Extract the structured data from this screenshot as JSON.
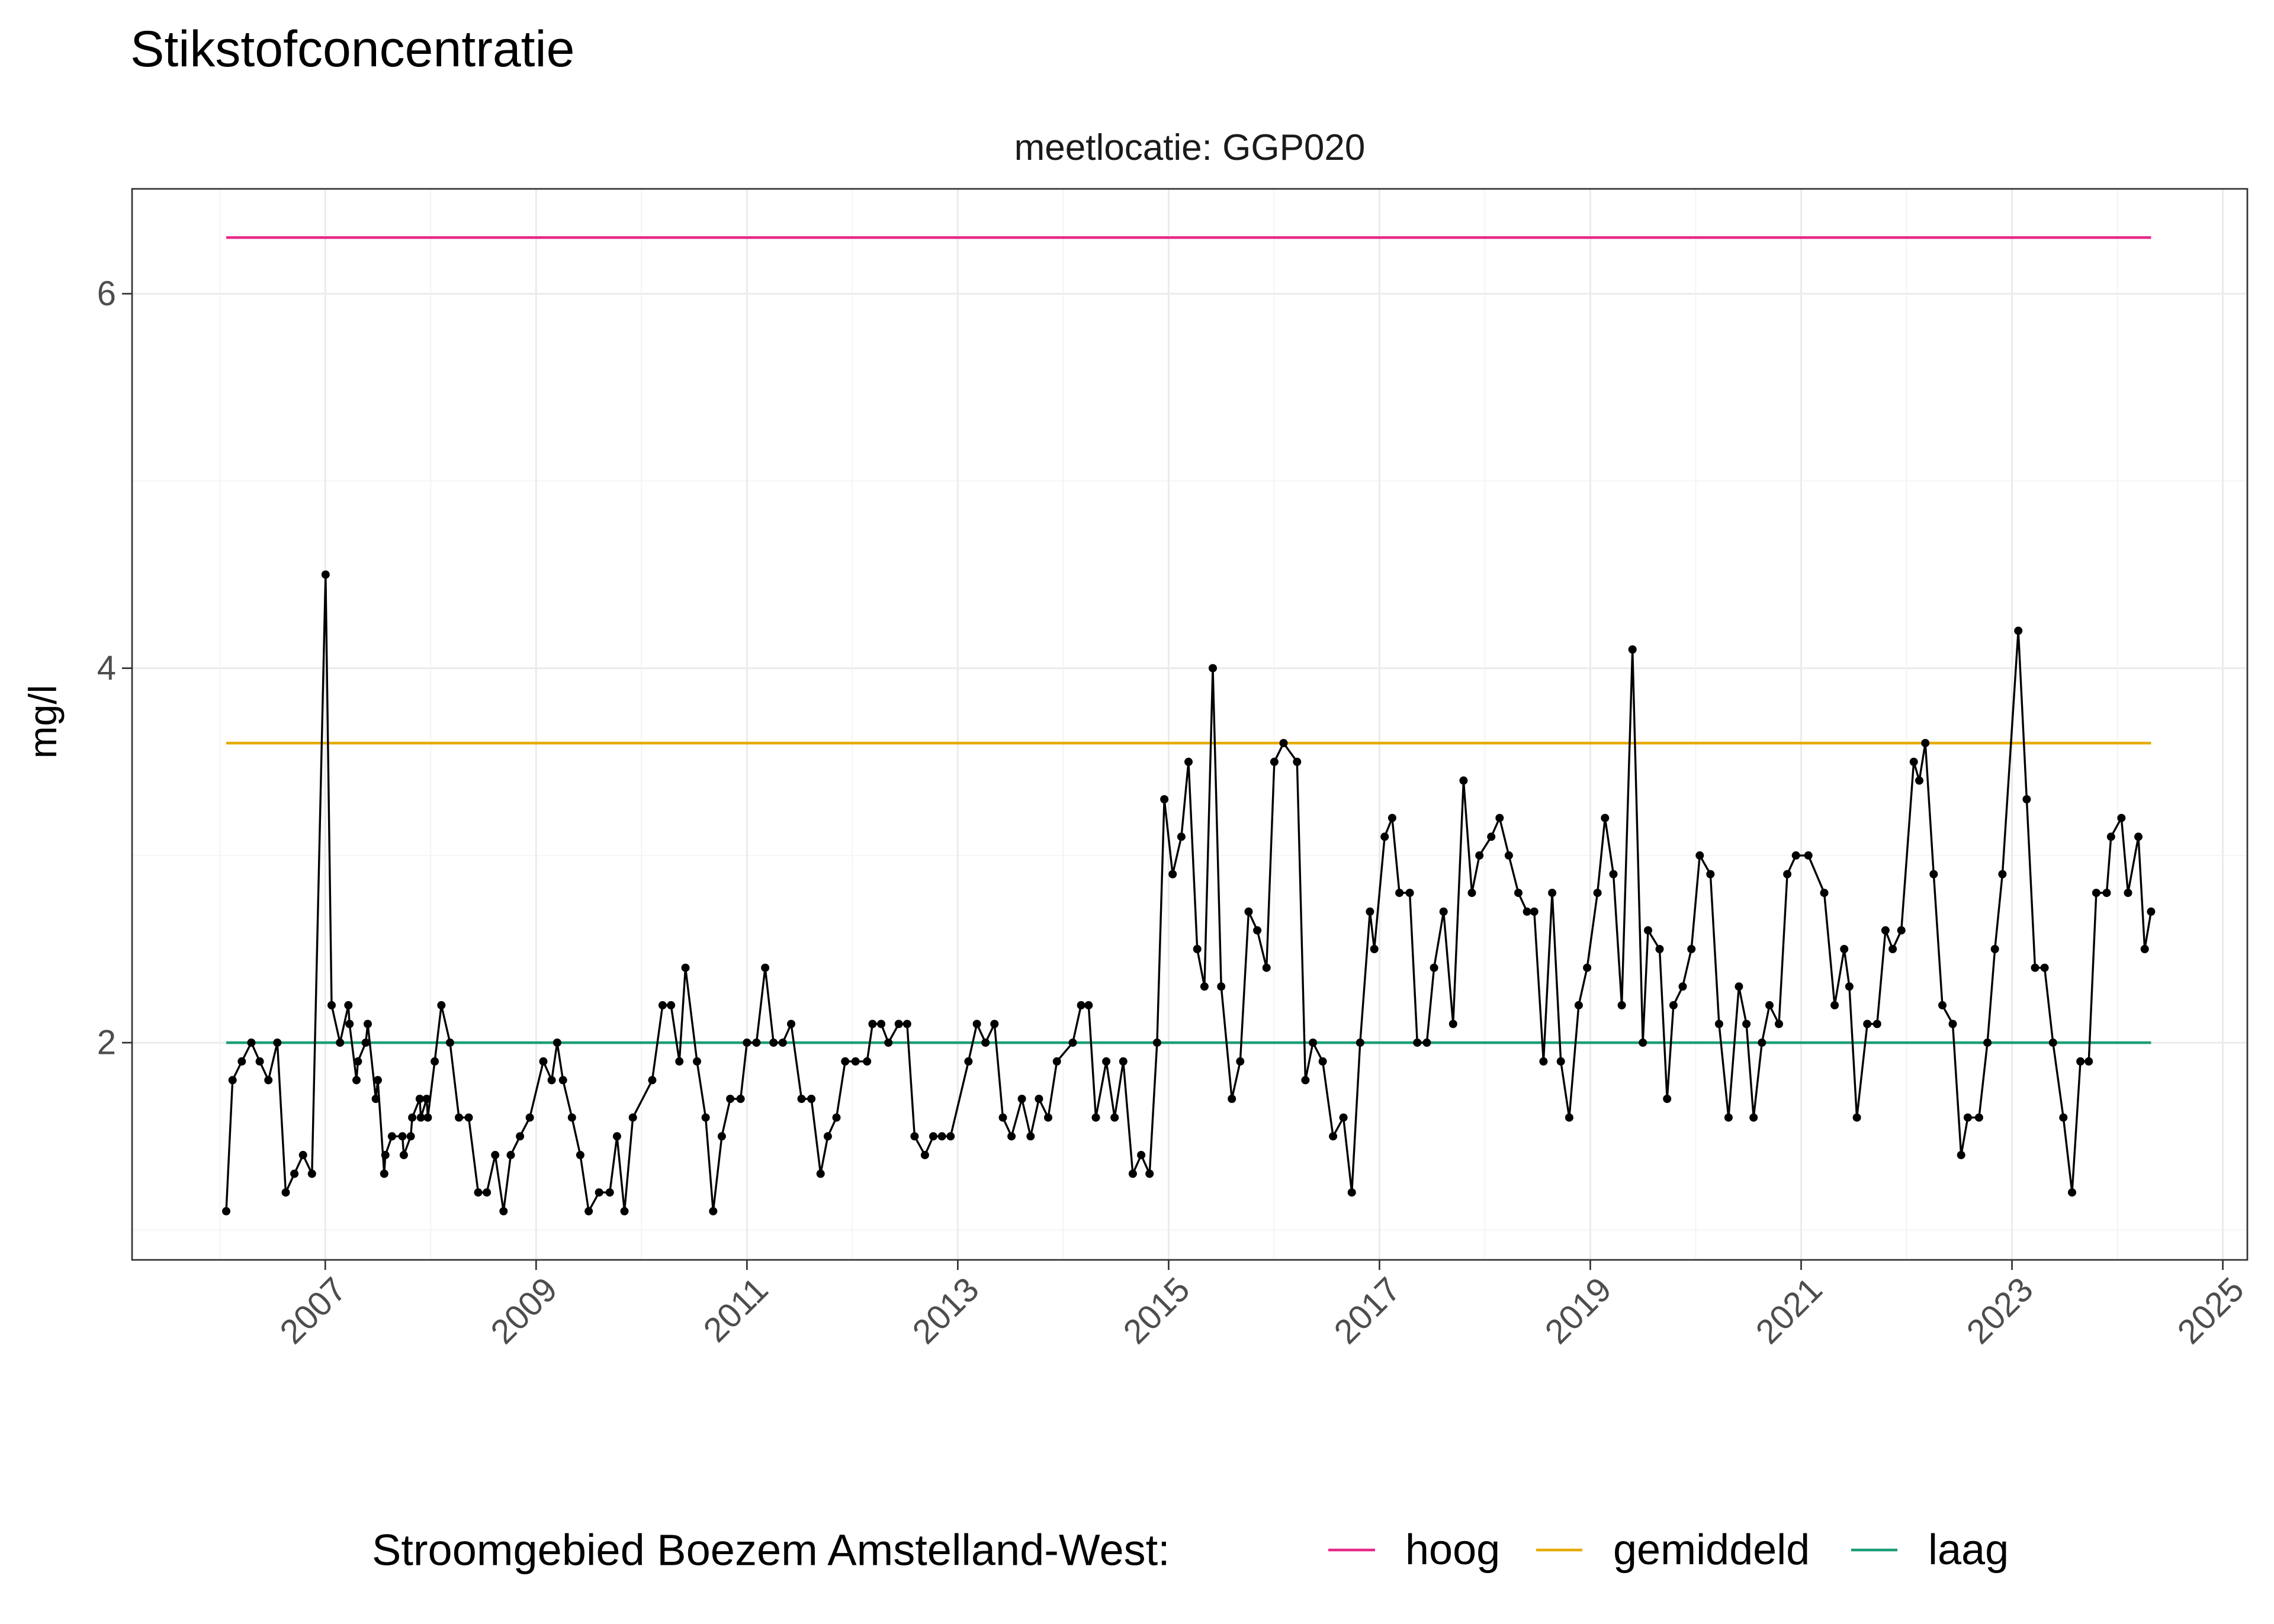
{
  "chart_data": {
    "type": "line",
    "title": "Stikstofconcentratie",
    "facet_label": "meetlocatie: GGP020",
    "ylabel": "mg/l",
    "xlim": [
      "2005-03-03",
      "2025-03-27"
    ],
    "ylim": [
      0.84,
      6.56
    ],
    "x_ticks": [
      "2007",
      "2009",
      "2011",
      "2013",
      "2015",
      "2017",
      "2019",
      "2021",
      "2023",
      "2025"
    ],
    "y_ticks": [
      "2",
      "4",
      "6"
    ],
    "grid": true,
    "legend": {
      "title": "Stroomgebied Boezem Amstelland-West:",
      "position": "bottom"
    },
    "reference_lines": [
      {
        "name": "hoog",
        "value": 6.3,
        "color": "#E7298A"
      },
      {
        "name": "gemiddeld",
        "value": 3.6,
        "color": "#E6AB02"
      },
      {
        "name": "laag",
        "value": 2.0,
        "color": "#1B9E77"
      }
    ],
    "series": [
      {
        "color": "#000000",
        "markers": true,
        "points": [
          [
            "2006-01-23",
            1.1
          ],
          [
            "2006-02-14",
            1.8
          ],
          [
            "2006-03-18",
            1.9
          ],
          [
            "2006-04-20",
            2.0
          ],
          [
            "2006-05-19",
            1.9
          ],
          [
            "2006-06-18",
            1.8
          ],
          [
            "2006-07-19",
            2.0
          ],
          [
            "2006-08-17",
            1.2
          ],
          [
            "2006-09-16",
            1.3
          ],
          [
            "2006-10-16",
            1.4
          ],
          [
            "2006-11-16",
            1.3
          ],
          [
            "2007-01-02",
            4.5
          ],
          [
            "2007-01-23",
            2.2
          ],
          [
            "2007-02-21",
            2.0
          ],
          [
            "2007-03-22",
            2.2
          ],
          [
            "2007-03-26",
            2.1
          ],
          [
            "2007-04-19",
            1.8
          ],
          [
            "2007-04-24",
            1.9
          ],
          [
            "2007-05-21",
            2.0
          ],
          [
            "2007-05-28",
            2.1
          ],
          [
            "2007-06-25",
            1.7
          ],
          [
            "2007-07-02",
            1.8
          ],
          [
            "2007-07-24",
            1.3
          ],
          [
            "2007-07-28",
            1.4
          ],
          [
            "2007-08-20",
            1.5
          ],
          [
            "2007-09-25",
            1.5
          ],
          [
            "2007-09-30",
            1.4
          ],
          [
            "2007-10-24",
            1.5
          ],
          [
            "2007-10-29",
            1.6
          ],
          [
            "2007-11-24",
            1.7
          ],
          [
            "2007-11-28",
            1.6
          ],
          [
            "2007-12-18",
            1.7
          ],
          [
            "2007-12-22",
            1.6
          ],
          [
            "2008-01-15",
            1.9
          ],
          [
            "2008-02-07",
            2.2
          ],
          [
            "2008-03-08",
            2.0
          ],
          [
            "2008-04-08",
            1.6
          ],
          [
            "2008-05-12",
            1.6
          ],
          [
            "2008-06-14",
            1.2
          ],
          [
            "2008-07-14",
            1.2
          ],
          [
            "2008-08-12",
            1.4
          ],
          [
            "2008-09-10",
            1.1
          ],
          [
            "2008-10-05",
            1.4
          ],
          [
            "2008-11-06",
            1.5
          ],
          [
            "2008-12-10",
            1.6
          ],
          [
            "2009-01-26",
            1.9
          ],
          [
            "2009-02-24",
            1.8
          ],
          [
            "2009-03-15",
            2.0
          ],
          [
            "2009-04-04",
            1.8
          ],
          [
            "2009-05-05",
            1.6
          ],
          [
            "2009-06-03",
            1.4
          ],
          [
            "2009-07-02",
            1.1
          ],
          [
            "2009-08-07",
            1.2
          ],
          [
            "2009-09-13",
            1.2
          ],
          [
            "2009-10-08",
            1.5
          ],
          [
            "2009-11-03",
            1.1
          ],
          [
            "2009-12-02",
            1.6
          ],
          [
            "2010-02-07",
            1.8
          ],
          [
            "2010-03-15",
            2.2
          ],
          [
            "2010-04-13",
            2.2
          ],
          [
            "2010-05-12",
            1.9
          ],
          [
            "2010-06-02",
            2.4
          ],
          [
            "2010-07-12",
            1.9
          ],
          [
            "2010-08-11",
            1.6
          ],
          [
            "2010-09-06",
            1.1
          ],
          [
            "2010-10-06",
            1.5
          ],
          [
            "2010-11-04",
            1.7
          ],
          [
            "2010-12-10",
            1.7
          ],
          [
            "2011-01-01",
            2.0
          ],
          [
            "2011-02-03",
            2.0
          ],
          [
            "2011-03-05",
            2.4
          ],
          [
            "2011-04-03",
            2.0
          ],
          [
            "2011-05-05",
            2.0
          ],
          [
            "2011-06-03",
            2.1
          ],
          [
            "2011-07-09",
            1.7
          ],
          [
            "2011-08-12",
            1.7
          ],
          [
            "2011-09-13",
            1.3
          ],
          [
            "2011-10-08",
            1.5
          ],
          [
            "2011-11-07",
            1.6
          ],
          [
            "2011-12-07",
            1.9
          ],
          [
            "2012-01-12",
            1.9
          ],
          [
            "2012-02-21",
            1.9
          ],
          [
            "2012-03-11",
            2.1
          ],
          [
            "2012-04-10",
            2.1
          ],
          [
            "2012-05-05",
            2.0
          ],
          [
            "2012-06-10",
            2.1
          ],
          [
            "2012-07-09",
            2.1
          ],
          [
            "2012-08-04",
            1.5
          ],
          [
            "2012-09-09",
            1.4
          ],
          [
            "2012-10-08",
            1.5
          ],
          [
            "2012-11-07",
            1.5
          ],
          [
            "2012-12-07",
            1.5
          ],
          [
            "2013-02-07",
            1.9
          ],
          [
            "2013-03-08",
            2.1
          ],
          [
            "2013-04-07",
            2.0
          ],
          [
            "2013-05-08",
            2.1
          ],
          [
            "2013-06-06",
            1.6
          ],
          [
            "2013-07-06",
            1.5
          ],
          [
            "2013-08-11",
            1.7
          ],
          [
            "2013-09-10",
            1.5
          ],
          [
            "2013-10-09",
            1.7
          ],
          [
            "2013-11-10",
            1.6
          ],
          [
            "2013-12-10",
            1.9
          ],
          [
            "2014-02-03",
            2.0
          ],
          [
            "2014-03-04",
            2.2
          ],
          [
            "2014-03-30",
            2.2
          ],
          [
            "2014-04-24",
            1.6
          ],
          [
            "2014-05-30",
            1.9
          ],
          [
            "2014-06-28",
            1.6
          ],
          [
            "2014-07-28",
            1.9
          ],
          [
            "2014-08-30",
            1.3
          ],
          [
            "2014-09-28",
            1.4
          ],
          [
            "2014-10-27",
            1.3
          ],
          [
            "2014-11-22",
            2.0
          ],
          [
            "2014-12-17",
            3.3
          ],
          [
            "2015-01-15",
            2.9
          ],
          [
            "2015-02-14",
            3.1
          ],
          [
            "2015-03-11",
            3.5
          ],
          [
            "2015-04-10",
            2.5
          ],
          [
            "2015-05-05",
            2.3
          ],
          [
            "2015-06-03",
            4.0
          ],
          [
            "2015-07-02",
            2.3
          ],
          [
            "2015-08-08",
            1.7
          ],
          [
            "2015-09-06",
            1.9
          ],
          [
            "2015-10-05",
            2.7
          ],
          [
            "2015-11-04",
            2.6
          ],
          [
            "2015-12-06",
            2.4
          ],
          [
            "2016-01-02",
            3.5
          ],
          [
            "2016-02-03",
            3.6
          ],
          [
            "2016-03-21",
            3.5
          ],
          [
            "2016-04-19",
            1.8
          ],
          [
            "2016-05-15",
            2.0
          ],
          [
            "2016-06-18",
            1.9
          ],
          [
            "2016-07-24",
            1.5
          ],
          [
            "2016-08-29",
            1.6
          ],
          [
            "2016-09-27",
            1.2
          ],
          [
            "2016-10-26",
            2.0
          ],
          [
            "2016-11-29",
            2.7
          ],
          [
            "2016-12-14",
            2.5
          ],
          [
            "2017-01-19",
            3.1
          ],
          [
            "2017-02-14",
            3.2
          ],
          [
            "2017-03-11",
            2.8
          ],
          [
            "2017-04-16",
            2.8
          ],
          [
            "2017-05-12",
            2.0
          ],
          [
            "2017-06-14",
            2.0
          ],
          [
            "2017-07-09",
            2.4
          ],
          [
            "2017-08-11",
            2.7
          ],
          [
            "2017-09-13",
            2.1
          ],
          [
            "2017-10-19",
            3.4
          ],
          [
            "2017-11-17",
            2.8
          ],
          [
            "2017-12-13",
            3.0
          ],
          [
            "2018-01-23",
            3.1
          ],
          [
            "2018-02-21",
            3.2
          ],
          [
            "2018-03-25",
            3.0
          ],
          [
            "2018-04-27",
            2.8
          ],
          [
            "2018-05-27",
            2.7
          ],
          [
            "2018-06-21",
            2.7
          ],
          [
            "2018-07-23",
            1.9
          ],
          [
            "2018-08-22",
            2.8
          ],
          [
            "2018-09-21",
            1.9
          ],
          [
            "2018-10-20",
            1.6
          ],
          [
            "2018-11-22",
            2.2
          ],
          [
            "2018-12-21",
            2.4
          ],
          [
            "2019-01-26",
            2.8
          ],
          [
            "2019-02-21",
            3.2
          ],
          [
            "2019-03-22",
            2.9
          ],
          [
            "2019-04-20",
            2.2
          ],
          [
            "2019-05-27",
            4.1
          ],
          [
            "2019-07-02",
            2.0
          ],
          [
            "2019-07-20",
            2.6
          ],
          [
            "2019-08-29",
            2.5
          ],
          [
            "2019-09-24",
            1.7
          ],
          [
            "2019-10-16",
            2.2
          ],
          [
            "2019-11-17",
            2.3
          ],
          [
            "2019-12-17",
            2.5
          ],
          [
            "2020-01-15",
            3.0
          ],
          [
            "2020-02-21",
            2.9
          ],
          [
            "2020-03-22",
            2.1
          ],
          [
            "2020-04-24",
            1.6
          ],
          [
            "2020-05-30",
            2.3
          ],
          [
            "2020-06-25",
            2.1
          ],
          [
            "2020-07-20",
            1.6
          ],
          [
            "2020-08-18",
            2.0
          ],
          [
            "2020-09-13",
            2.2
          ],
          [
            "2020-10-16",
            2.1
          ],
          [
            "2020-11-14",
            2.9
          ],
          [
            "2020-12-14",
            3.0
          ],
          [
            "2021-01-26",
            3.0
          ],
          [
            "2021-03-22",
            2.8
          ],
          [
            "2021-04-27",
            2.2
          ],
          [
            "2021-05-30",
            2.5
          ],
          [
            "2021-06-17",
            2.3
          ],
          [
            "2021-07-13",
            1.6
          ],
          [
            "2021-08-18",
            2.1
          ],
          [
            "2021-09-21",
            2.1
          ],
          [
            "2021-10-20",
            2.6
          ],
          [
            "2021-11-14",
            2.5
          ],
          [
            "2021-12-14",
            2.6
          ],
          [
            "2022-01-26",
            3.5
          ],
          [
            "2022-02-14",
            3.4
          ],
          [
            "2022-03-07",
            3.6
          ],
          [
            "2022-04-05",
            2.9
          ],
          [
            "2022-05-05",
            2.2
          ],
          [
            "2022-06-10",
            2.1
          ],
          [
            "2022-07-09",
            1.4
          ],
          [
            "2022-08-01",
            1.6
          ],
          [
            "2022-09-09",
            1.6
          ],
          [
            "2022-10-08",
            2.0
          ],
          [
            "2022-11-03",
            2.5
          ],
          [
            "2022-11-29",
            2.9
          ],
          [
            "2023-01-23",
            4.2
          ],
          [
            "2023-02-21",
            3.3
          ],
          [
            "2023-03-22",
            2.4
          ],
          [
            "2023-04-24",
            2.4
          ],
          [
            "2023-05-23",
            2.0
          ],
          [
            "2023-06-28",
            1.6
          ],
          [
            "2023-07-28",
            1.2
          ],
          [
            "2023-08-26",
            1.9
          ],
          [
            "2023-09-24",
            1.9
          ],
          [
            "2023-10-20",
            2.8
          ],
          [
            "2023-11-25",
            2.8
          ],
          [
            "2023-12-10",
            3.1
          ],
          [
            "2024-01-15",
            3.2
          ],
          [
            "2024-02-07",
            2.8
          ],
          [
            "2024-03-14",
            3.1
          ],
          [
            "2024-04-05",
            2.5
          ],
          [
            "2024-04-27",
            2.7
          ]
        ]
      }
    ]
  }
}
